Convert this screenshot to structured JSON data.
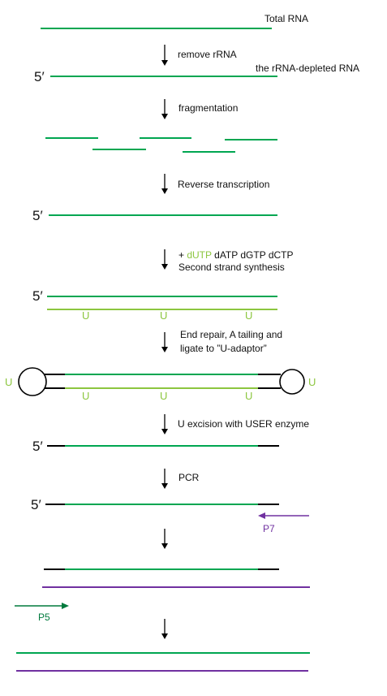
{
  "colors": {
    "rna": "#00a651",
    "second_strand": "#8cc63f",
    "adaptor": "#000000",
    "p7_strand": "#7030a0",
    "p5_primer": "#007a3d",
    "arrow": "#000000"
  },
  "labels": {
    "total_rna": "Total RNA",
    "depleted_rna": "the rRNA-depleted RNA",
    "five_prime": "5′"
  },
  "steps": {
    "remove_rrna": "remove rRNA",
    "fragmentation": "fragmentation",
    "reverse_transcription": "Reverse transcription",
    "plus": "+ ",
    "dutp": "dUTP",
    "nucleotides_rest": " dATP dGTP dCTP",
    "second_strand": "Second strand synthesis",
    "end_repair_line1": "End repair, A tailing  and",
    "end_repair_line2": "ligate to ”U-adaptor”",
    "u_excision": "U excision with USER enzyme",
    "pcr": "PCR"
  },
  "u_mark": "U",
  "primers": {
    "p7": "P7",
    "p5": "P5"
  }
}
